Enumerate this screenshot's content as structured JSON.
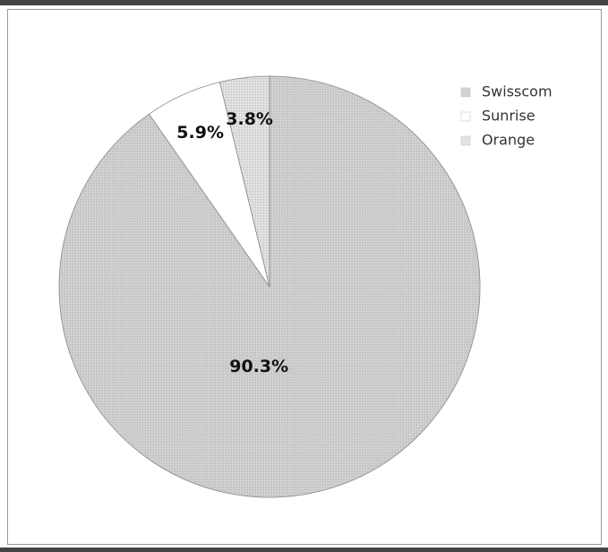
{
  "chart_data": {
    "type": "pie",
    "categories": [
      "Swisscom",
      "Sunrise",
      "Orange"
    ],
    "values": [
      90.3,
      5.9,
      3.8
    ],
    "value_labels": [
      "90.3%",
      "5.9%",
      "3.8%"
    ],
    "colors": [
      "#d2d2d2",
      "#ffffff",
      "#e4e4e4"
    ],
    "legend": "top-right"
  }
}
